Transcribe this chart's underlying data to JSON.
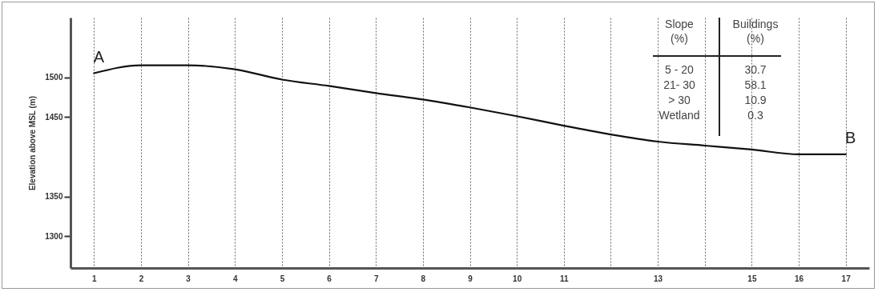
{
  "chart_data": {
    "type": "line",
    "ylabel": "Elevation above MSL (m)",
    "categories": [
      "1",
      "2",
      "3",
      "4",
      "5",
      "6",
      "7",
      "8",
      "9",
      "10",
      "11",
      null,
      "13",
      null,
      "15",
      "16",
      "17"
    ],
    "series": [
      {
        "color": "#111111",
        "values": [
          1505,
          1515,
          1515,
          1510,
          1497,
          1489,
          1480,
          1472,
          1462,
          1451,
          1439,
          1428,
          1419,
          1414,
          1409,
          1403,
          1403
        ]
      }
    ],
    "ylim": [
      1260,
      1575
    ],
    "yticks": [
      1300,
      1350,
      1450,
      1500
    ],
    "grid": "x",
    "marker": "none",
    "line_style": "solid",
    "annotations": [
      {
        "text": "A",
        "x": "1",
        "y": 1505
      },
      {
        "text": "B",
        "x": "17",
        "y": 1403
      },
      "Slope\n(%)",
      "Buildings\n(%)",
      "5 - 20",
      "30.7",
      "21- 30",
      "58.1",
      "> 30",
      "10.9",
      "Wetland",
      "0.3"
    ]
  }
}
